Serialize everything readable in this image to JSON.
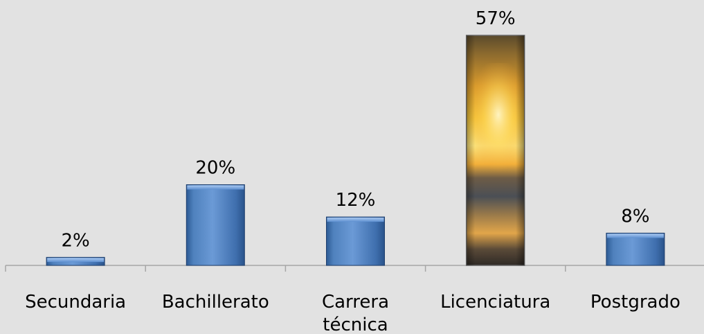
{
  "chart_data": {
    "type": "bar",
    "title": "",
    "xlabel": "",
    "ylabel": "",
    "categories": [
      [
        "Secundaria"
      ],
      [
        "Bachillerato"
      ],
      [
        "Carrera",
        "técnica"
      ],
      [
        "Licenciatura"
      ],
      [
        "Postgrado"
      ]
    ],
    "values": [
      2,
      20,
      12,
      57,
      8
    ],
    "value_labels": [
      "2%",
      "20%",
      "12%",
      "57%",
      "8%"
    ],
    "ylim": [
      0,
      57
    ],
    "highlighted_index": 3,
    "grid": false,
    "colors": {
      "bar": "#4f81bd",
      "bar_light": "#8db3e6",
      "bar_dark": "#2c5a94",
      "axis": "#a6a6a6",
      "background": "#e2e2e2"
    }
  }
}
